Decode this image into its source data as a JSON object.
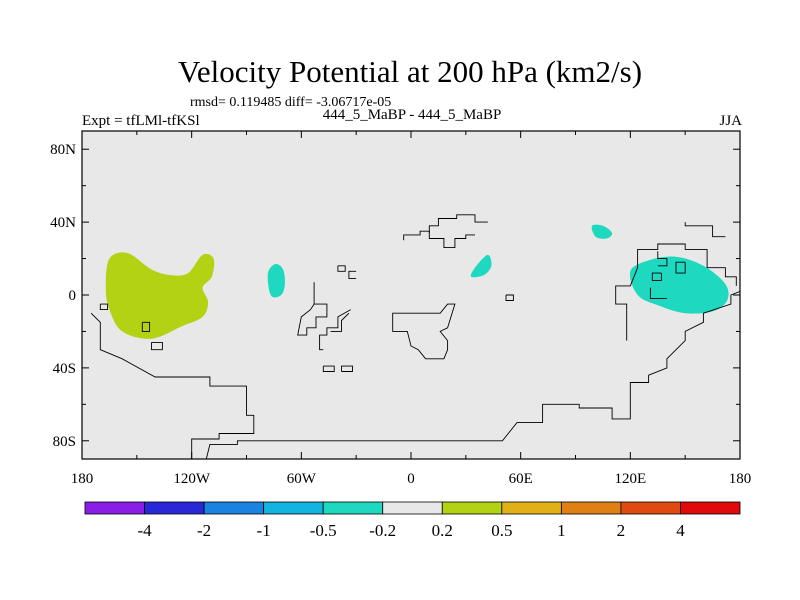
{
  "chart_data": {
    "type": "heatmap",
    "title": "Velocity Potential at 200 hPa (km2/s)",
    "stats": "rmsd= 0.119485 diff= -3.06717e-05",
    "left_label": "Expt = tfLMl-tfKSl",
    "center_label": "444_5_MaBP - 444_5_MaBP",
    "right_label": "JJA",
    "x_range": [
      -180,
      180
    ],
    "y_range": [
      -90,
      90
    ],
    "x_ticks": [
      {
        "value": -180,
        "label": "180"
      },
      {
        "value": -120,
        "label": "120W"
      },
      {
        "value": -60,
        "label": "60W"
      },
      {
        "value": 0,
        "label": "0"
      },
      {
        "value": 60,
        "label": "60E"
      },
      {
        "value": 120,
        "label": "120E"
      },
      {
        "value": 180,
        "label": "180"
      }
    ],
    "y_ticks": [
      {
        "value": 80,
        "label": "80N"
      },
      {
        "value": 40,
        "label": "40N"
      },
      {
        "value": 0,
        "label": "0"
      },
      {
        "value": -40,
        "label": "40S"
      },
      {
        "value": -80,
        "label": "80S"
      }
    ],
    "colorbar": {
      "colors": [
        "#8a1ee6",
        "#2828d8",
        "#1a82e0",
        "#14b4e0",
        "#1ed8c0",
        "#e8e8e8",
        "#b4d214",
        "#e0b014",
        "#e08014",
        "#e04a10",
        "#e00a0a"
      ],
      "labels": [
        "-4",
        "-2",
        "-1",
        "-0.5",
        "-0.2",
        "0.2",
        "0.5",
        "1",
        "2",
        "4"
      ]
    },
    "regions": [
      {
        "name": "positive-anomaly-east-pacific",
        "range": "0.2 to 0.5",
        "color": "#b4d214",
        "points": [
          [
            -165,
            20
          ],
          [
            -155,
            23
          ],
          [
            -142,
            14
          ],
          [
            -132,
            11
          ],
          [
            -122,
            12
          ],
          [
            -114,
            22
          ],
          [
            -108,
            20
          ],
          [
            -109,
            10
          ],
          [
            -114,
            4
          ],
          [
            -111,
            -4
          ],
          [
            -114,
            -12
          ],
          [
            -125,
            -17
          ],
          [
            -142,
            -24
          ],
          [
            -158,
            -20
          ],
          [
            -165,
            -8
          ],
          [
            -167,
            4
          ]
        ]
      },
      {
        "name": "negative-anomaly-amazon",
        "range": "-0.5 to -0.2",
        "color": "#1ed8c0",
        "points": [
          [
            -74,
            17
          ],
          [
            -70,
            14
          ],
          [
            -69,
            6
          ],
          [
            -71,
            0
          ],
          [
            -76,
            -1
          ],
          [
            -78,
            5
          ],
          [
            -78,
            13
          ]
        ]
      },
      {
        "name": "negative-anomaly-africa",
        "range": "-0.5 to -0.2",
        "color": "#1ed8c0",
        "points": [
          [
            35,
            15
          ],
          [
            42,
            22
          ],
          [
            44,
            16
          ],
          [
            40,
            11
          ],
          [
            33,
            10
          ]
        ]
      },
      {
        "name": "negative-anomaly-tibet",
        "range": "-0.5 to -0.2",
        "color": "#1ed8c0",
        "points": [
          [
            99,
            38
          ],
          [
            105,
            38
          ],
          [
            110,
            34
          ],
          [
            107,
            31
          ],
          [
            101,
            32
          ]
        ]
      },
      {
        "name": "negative-anomaly-west-pacific",
        "range": "-0.5 to -0.2",
        "color": "#1ed8c0",
        "points": [
          [
            120,
            13
          ],
          [
            130,
            19
          ],
          [
            145,
            21
          ],
          [
            160,
            16
          ],
          [
            172,
            6
          ],
          [
            173,
            -3
          ],
          [
            165,
            -9
          ],
          [
            150,
            -10
          ],
          [
            136,
            -6
          ],
          [
            124,
            0
          ]
        ]
      }
    ],
    "coastlines": [
      [
        [
          -120,
          -90
        ],
        [
          -120,
          -79
        ],
        [
          -105,
          -79
        ],
        [
          -105,
          -76
        ],
        [
          -86,
          -76
        ],
        [
          -86,
          -66
        ],
        [
          -90,
          -66
        ],
        [
          -90,
          -50
        ],
        [
          -110,
          -50
        ],
        [
          -110,
          -45
        ],
        [
          -140,
          -45
        ],
        [
          -158,
          -35
        ],
        [
          -170,
          -30
        ],
        [
          -170,
          -15
        ],
        [
          -175,
          -10
        ]
      ],
      [
        [
          -142,
          -26
        ],
        [
          -142,
          -30
        ],
        [
          -136,
          -30
        ],
        [
          -136,
          -26
        ],
        [
          -142,
          -26
        ]
      ],
      [
        [
          -147,
          -15
        ],
        [
          -147,
          -20
        ],
        [
          -143,
          -20
        ],
        [
          -143,
          -15
        ],
        [
          -147,
          -15
        ]
      ],
      [
        [
          -170,
          -5
        ],
        [
          -166,
          -5
        ],
        [
          -166,
          -8
        ],
        [
          -170,
          -8
        ],
        [
          -170,
          -5
        ]
      ],
      [
        [
          -53,
          7
        ],
        [
          -53,
          -5
        ],
        [
          -46,
          -5
        ],
        [
          -46,
          -12
        ],
        [
          -52,
          -12
        ],
        [
          -52,
          -18
        ],
        [
          -57,
          -18
        ],
        [
          -57,
          -22
        ],
        [
          -62,
          -22
        ],
        [
          -60,
          -12
        ],
        [
          -55,
          -8
        ],
        [
          -53,
          -5
        ]
      ],
      [
        [
          -33,
          -8
        ],
        [
          -40,
          -12
        ],
        [
          -40,
          -18
        ],
        [
          -46,
          -18
        ],
        [
          -46,
          -22
        ],
        [
          -50,
          -22
        ],
        [
          -50,
          -30
        ],
        [
          -48,
          -30
        ]
      ],
      [
        [
          -34,
          -10
        ],
        [
          -38,
          -14
        ],
        [
          -38,
          -20
        ],
        [
          -44,
          -20
        ]
      ],
      [
        [
          -48,
          -39
        ],
        [
          -42,
          -39
        ],
        [
          -42,
          -42
        ],
        [
          -48,
          -42
        ],
        [
          -48,
          -39
        ]
      ],
      [
        [
          -38,
          -42
        ],
        [
          -32,
          -42
        ],
        [
          -32,
          -39
        ],
        [
          -38,
          -39
        ],
        [
          -38,
          -42
        ]
      ],
      [
        [
          -30,
          13
        ],
        [
          -34,
          13
        ],
        [
          -34,
          9
        ],
        [
          -30,
          9
        ]
      ],
      [
        [
          -10,
          -15
        ],
        [
          -10,
          -20
        ],
        [
          -2,
          -20
        ],
        [
          0,
          -28
        ],
        [
          4,
          -30
        ],
        [
          8,
          -35
        ],
        [
          18,
          -35
        ],
        [
          20,
          -30
        ],
        [
          20,
          -25
        ],
        [
          16,
          -20
        ],
        [
          20,
          -18
        ],
        [
          24,
          -5
        ],
        [
          20,
          -5
        ],
        [
          16,
          -10
        ],
        [
          -10,
          -10
        ],
        [
          -10,
          -15
        ]
      ],
      [
        [
          -4,
          30
        ],
        [
          -4,
          33
        ],
        [
          5,
          33
        ],
        [
          5,
          35
        ],
        [
          10,
          35
        ],
        [
          10,
          31
        ],
        [
          18,
          31
        ],
        [
          18,
          26
        ],
        [
          24,
          26
        ],
        [
          24,
          31
        ],
        [
          30,
          31
        ],
        [
          30,
          33
        ],
        [
          35,
          33
        ]
      ],
      [
        [
          10,
          34
        ],
        [
          10,
          38
        ],
        [
          15,
          38
        ],
        [
          15,
          42
        ],
        [
          25,
          42
        ],
        [
          25,
          44
        ],
        [
          35,
          44
        ],
        [
          35,
          40
        ],
        [
          42,
          40
        ]
      ],
      [
        [
          52,
          0
        ],
        [
          56,
          0
        ],
        [
          56,
          -3
        ],
        [
          52,
          -3
        ],
        [
          52,
          0
        ]
      ],
      [
        [
          -170,
          -90
        ],
        [
          -112,
          -90
        ],
        [
          -110,
          -82
        ],
        [
          -95,
          -82
        ],
        [
          -95,
          -80
        ],
        [
          50,
          -80
        ],
        [
          58,
          -70
        ],
        [
          72,
          -70
        ],
        [
          72,
          -60
        ],
        [
          92,
          -60
        ],
        [
          92,
          -62
        ],
        [
          110,
          -62
        ],
        [
          110,
          -68
        ],
        [
          120,
          -68
        ],
        [
          120,
          -48
        ],
        [
          130,
          -48
        ],
        [
          130,
          -44
        ],
        [
          140,
          -40
        ],
        [
          140,
          -35
        ],
        [
          145,
          -30
        ],
        [
          150,
          -25
        ],
        [
          150,
          -20
        ],
        [
          160,
          -15
        ],
        [
          160,
          -10
        ],
        [
          175,
          -5
        ],
        [
          175,
          0
        ],
        [
          180,
          2
        ]
      ],
      [
        [
          118,
          -25
        ],
        [
          118,
          -5
        ],
        [
          112,
          -5
        ],
        [
          112,
          5
        ],
        [
          120,
          5
        ],
        [
          124,
          15
        ],
        [
          124,
          25
        ],
        [
          135,
          25
        ],
        [
          135,
          28
        ],
        [
          150,
          28
        ],
        [
          150,
          25
        ],
        [
          162,
          25
        ],
        [
          162,
          15
        ],
        [
          172,
          15
        ],
        [
          172,
          10
        ],
        [
          178,
          10
        ],
        [
          178,
          5
        ]
      ],
      [
        [
          135,
          24
        ],
        [
          135,
          20
        ],
        [
          140,
          20
        ],
        [
          140,
          16
        ],
        [
          135,
          16
        ]
      ],
      [
        [
          150,
          18
        ],
        [
          145,
          18
        ],
        [
          145,
          12
        ],
        [
          150,
          12
        ],
        [
          150,
          18
        ]
      ],
      [
        [
          150,
          40
        ],
        [
          150,
          38
        ],
        [
          165,
          38
        ],
        [
          165,
          32
        ],
        [
          172,
          32
        ]
      ],
      [
        [
          137,
          12
        ],
        [
          132,
          12
        ],
        [
          132,
          8
        ],
        [
          137,
          8
        ],
        [
          137,
          12
        ]
      ],
      [
        [
          131,
          4
        ],
        [
          131,
          -2
        ],
        [
          140,
          -2
        ]
      ],
      [
        [
          -40,
          16
        ],
        [
          -36,
          16
        ],
        [
          -36,
          13
        ],
        [
          -40,
          13
        ],
        [
          -40,
          16
        ]
      ]
    ]
  }
}
